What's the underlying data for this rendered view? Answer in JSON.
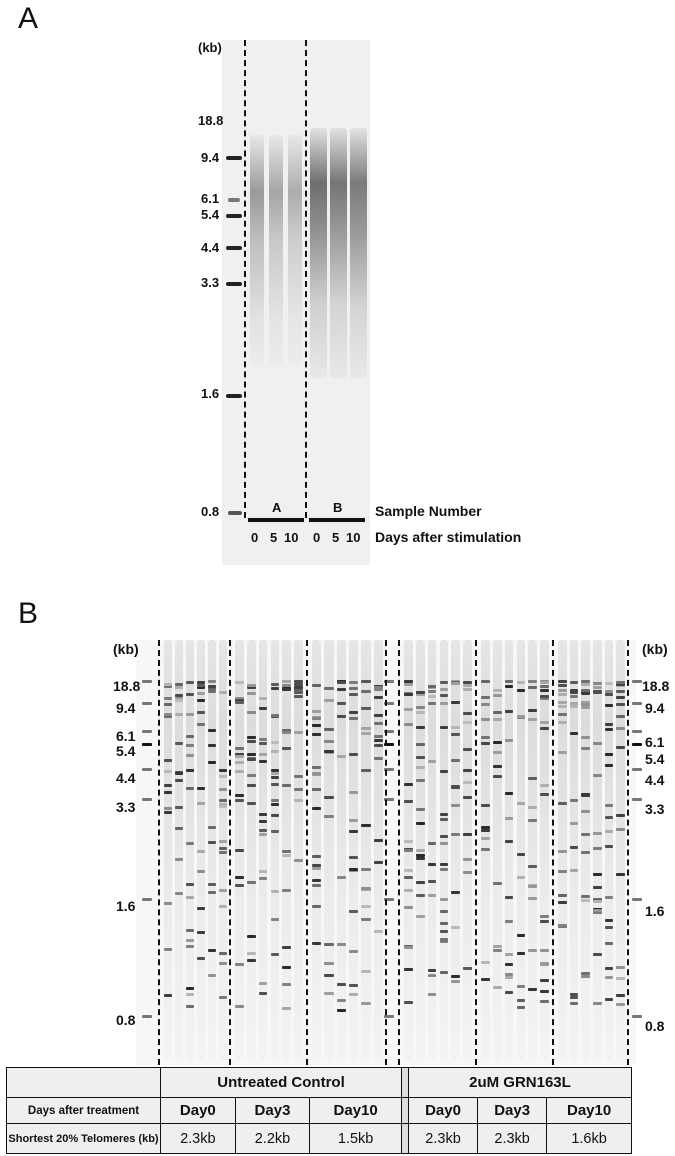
{
  "panel_a": {
    "letter": "A",
    "unit_label": "(kb)",
    "ladder": [
      "18.8",
      "9.4",
      "6.1",
      "5.4",
      "4.4",
      "3.3",
      "1.6",
      "0.8"
    ],
    "samples": [
      "A",
      "B"
    ],
    "days": [
      "0",
      "5",
      "10",
      "0",
      "5",
      "10"
    ],
    "sample_row_label": "Sample Number",
    "days_row_label": "Days after stimulation"
  },
  "panel_b": {
    "letter": "B",
    "unit_label": "(kb)",
    "ladder_left": [
      "18.8",
      "9.4",
      "6.1",
      "5.4",
      "4.4",
      "3.3",
      "1.6",
      "0.8"
    ],
    "ladder_right": [
      "18.8",
      "9.4",
      "6.1",
      "5.4",
      "4.4",
      "3.3",
      "1.6",
      "0.8"
    ],
    "table": {
      "groups": [
        "Untreated Control",
        "2uM GRN163L"
      ],
      "row1_label": "Days after treatment",
      "days": [
        "Day0",
        "Day3",
        "Day10",
        "Day0",
        "Day3",
        "Day10"
      ],
      "row2_label": "Shortest 20% Telomeres (kb)",
      "values": [
        "2.3kb",
        "2.2kb",
        "1.5kb",
        "2.3kb",
        "2.3kb",
        "1.6kb"
      ]
    }
  }
}
